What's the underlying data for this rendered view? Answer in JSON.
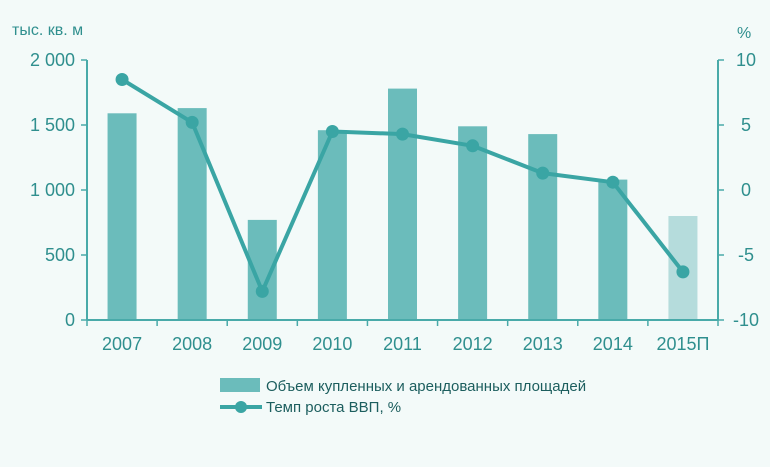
{
  "chart_data": {
    "type": "bar",
    "categories": [
      "2007",
      "2008",
      "2009",
      "2010",
      "2011",
      "2012",
      "2013",
      "2014",
      "2015П"
    ],
    "series": [
      {
        "name": "Объем купленных и арендованных площадей",
        "type": "bar",
        "axis": "left",
        "values": [
          1590,
          1630,
          770,
          1460,
          1780,
          1490,
          1430,
          1080,
          800
        ],
        "forecast_index": 8
      },
      {
        "name": "Темп роста ВВП, %",
        "type": "line",
        "axis": "right",
        "values": [
          8.5,
          5.2,
          -7.8,
          4.5,
          4.3,
          3.4,
          1.3,
          0.6,
          -6.3
        ]
      }
    ],
    "ylabel_left": "тыс. кв. м",
    "ylabel_right": "%",
    "ylim_left": [
      0,
      2000
    ],
    "ylim_right": [
      -10,
      10
    ],
    "yticks_left": [
      "0",
      "500",
      "1 000",
      "1 500",
      "2 000"
    ],
    "yticks_right": [
      "-10",
      "-5",
      "0",
      "5",
      "10"
    ],
    "legend_position": "bottom",
    "colors": {
      "bar": "#6bbcbb",
      "bar_forecast": "#b5dcdc",
      "line": "#3aa5a4",
      "axis": "#49aaa9",
      "text": "#2f8f8e"
    }
  }
}
